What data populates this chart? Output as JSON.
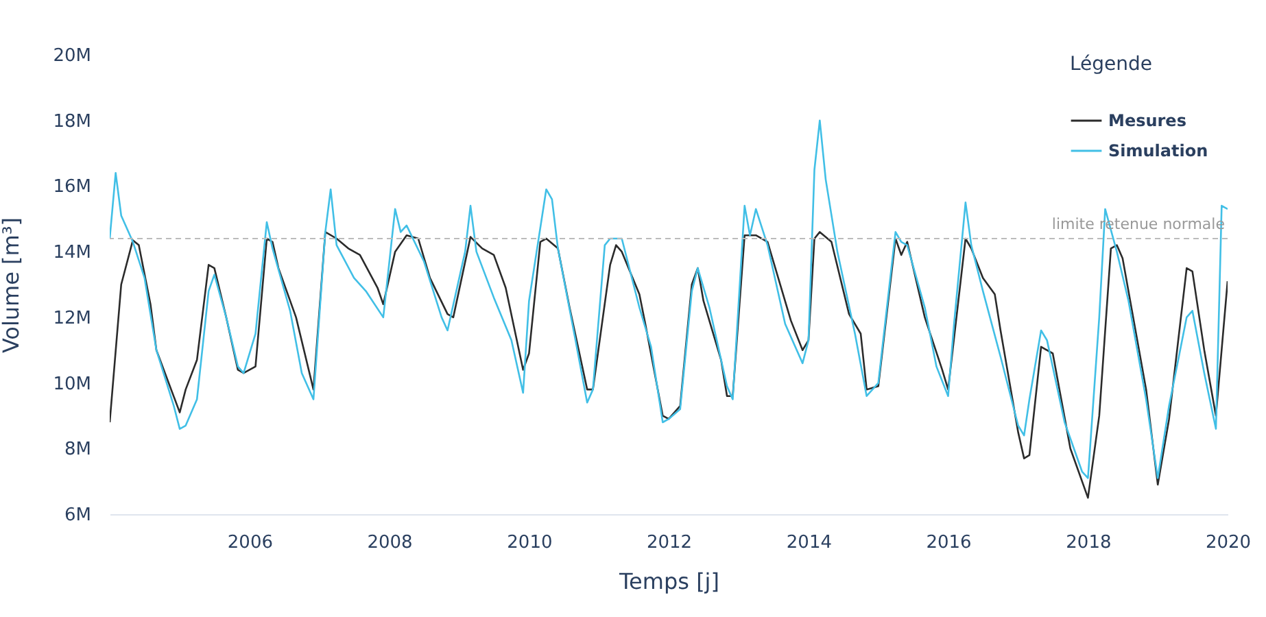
{
  "chart_data": {
    "type": "line",
    "xlabel": "Temps [j]",
    "ylabel": "Volume [m³]",
    "legend_title": "Légende",
    "legend": "top right",
    "xlim": [
      "2004-01",
      "2020-01"
    ],
    "xticks": [
      "2006",
      "2008",
      "2010",
      "2012",
      "2014",
      "2016",
      "2018",
      "2020"
    ],
    "ylim": [
      6000000,
      20000000
    ],
    "yticks": [
      {
        "value": 6000000,
        "label": "6M"
      },
      {
        "value": 8000000,
        "label": "8M"
      },
      {
        "value": 10000000,
        "label": "10M"
      },
      {
        "value": 12000000,
        "label": "12M"
      },
      {
        "value": 14000000,
        "label": "14M"
      },
      {
        "value": 16000000,
        "label": "16M"
      },
      {
        "value": 18000000,
        "label": "18M"
      },
      {
        "value": 20000000,
        "label": "20M"
      }
    ],
    "ref_lines": [
      {
        "axis": "y",
        "value": 14400000,
        "label": "limite retenue normale",
        "color": "#bbbbbb",
        "line_style": "dashed"
      }
    ],
    "series": [
      {
        "name": "Mesures",
        "color": "#2b2b2b",
        "x": [
          "2004-01",
          "2004-03",
          "2004-05",
          "2004-06",
          "2004-08",
          "2004-09",
          "2005-01",
          "2005-02",
          "2005-04",
          "2005-06",
          "2005-07",
          "2005-09",
          "2005-11",
          "2005-12",
          "2006-02",
          "2006-04",
          "2006-05",
          "2006-06",
          "2006-09",
          "2006-12",
          "2007-02",
          "2007-04",
          "2007-06",
          "2007-08",
          "2007-11",
          "2007-12",
          "2008-02",
          "2008-04",
          "2008-06",
          "2008-08",
          "2008-11",
          "2008-12",
          "2009-03",
          "2009-05",
          "2009-07",
          "2009-09",
          "2009-12",
          "2010-01",
          "2010-03",
          "2010-04",
          "2010-06",
          "2010-08",
          "2010-11",
          "2010-12",
          "2011-03",
          "2011-04",
          "2011-05",
          "2011-08",
          "2011-09",
          "2011-12",
          "2012-01",
          "2012-03",
          "2012-05",
          "2012-06",
          "2012-07",
          "2012-10",
          "2012-11",
          "2012-12",
          "2013-02",
          "2013-04",
          "2013-06",
          "2013-10",
          "2013-12",
          "2014-01",
          "2014-02",
          "2014-03",
          "2014-05",
          "2014-08",
          "2014-10",
          "2014-11",
          "2015-01",
          "2015-04",
          "2015-05",
          "2015-06",
          "2015-09",
          "2015-12",
          "2016-01",
          "2016-04",
          "2016-05",
          "2016-07",
          "2016-09",
          "2016-10",
          "2017-01",
          "2017-02",
          "2017-03",
          "2017-05",
          "2017-07",
          "2017-10",
          "2018-01",
          "2018-03",
          "2018-05",
          "2018-06",
          "2018-07",
          "2018-11",
          "2019-01",
          "2019-03",
          "2019-06",
          "2019-07",
          "2019-09",
          "2019-11",
          "2020-01"
        ],
        "values": [
          8800000,
          13000000,
          14350000,
          14200000,
          12400000,
          11000000,
          9100000,
          9800000,
          10700000,
          13600000,
          13500000,
          12000000,
          10400000,
          10300000,
          10500000,
          14400000,
          14300000,
          13500000,
          12000000,
          9800000,
          14600000,
          14400000,
          14100000,
          13900000,
          12900000,
          12400000,
          14000000,
          14500000,
          14400000,
          13200000,
          12100000,
          12000000,
          14450000,
          14100000,
          13900000,
          12900000,
          10400000,
          10900000,
          14300000,
          14400000,
          14100000,
          12300000,
          9800000,
          9800000,
          13600000,
          14200000,
          14000000,
          12700000,
          11800000,
          9000000,
          8900000,
          9300000,
          13000000,
          13500000,
          12500000,
          10700000,
          9600000,
          9600000,
          14500000,
          14500000,
          14300000,
          11900000,
          11000000,
          11300000,
          14400000,
          14600000,
          14300000,
          12100000,
          11500000,
          9800000,
          9900000,
          14400000,
          13900000,
          14300000,
          12000000,
          10400000,
          9800000,
          14400000,
          14100000,
          13200000,
          12700000,
          11600000,
          8500000,
          7700000,
          7800000,
          11100000,
          10900000,
          8000000,
          6500000,
          9000000,
          14100000,
          14200000,
          13800000,
          9800000,
          6900000,
          8900000,
          13500000,
          13400000,
          11000000,
          9000000,
          13100000
        ]
      },
      {
        "name": "Simulation",
        "color": "#41bfe6",
        "x": [
          "2004-01",
          "2004-02",
          "2004-03",
          "2004-05",
          "2004-07",
          "2004-09",
          "2004-12",
          "2005-01",
          "2005-02",
          "2005-04",
          "2005-06",
          "2005-07",
          "2005-09",
          "2005-11",
          "2005-12",
          "2006-02",
          "2006-04",
          "2006-05",
          "2006-08",
          "2006-10",
          "2006-12",
          "2007-02",
          "2007-03",
          "2007-04",
          "2007-07",
          "2007-09",
          "2007-12",
          "2008-02",
          "2008-03",
          "2008-04",
          "2008-07",
          "2008-10",
          "2008-11",
          "2009-02",
          "2009-03",
          "2009-04",
          "2009-07",
          "2009-10",
          "2009-12",
          "2010-01",
          "2010-04",
          "2010-05",
          "2010-06",
          "2010-09",
          "2010-11",
          "2010-12",
          "2011-02",
          "2011-03",
          "2011-05",
          "2011-08",
          "2011-10",
          "2011-12",
          "2012-01",
          "2012-03",
          "2012-05",
          "2012-06",
          "2012-08",
          "2012-11",
          "2012-12",
          "2013-02",
          "2013-03",
          "2013-04",
          "2013-06",
          "2013-09",
          "2013-12",
          "2014-01",
          "2014-02",
          "2014-03",
          "2014-04",
          "2014-06",
          "2014-09",
          "2014-11",
          "2015-01",
          "2015-04",
          "2015-05",
          "2015-06",
          "2015-09",
          "2015-11",
          "2016-01",
          "2016-02",
          "2016-04",
          "2016-05",
          "2016-07",
          "2016-10",
          "2017-01",
          "2017-02",
          "2017-03",
          "2017-05",
          "2017-06",
          "2017-09",
          "2017-12",
          "2018-01",
          "2018-03",
          "2018-04",
          "2018-06",
          "2018-08",
          "2018-11",
          "2019-01",
          "2019-03",
          "2019-06",
          "2019-07",
          "2019-09",
          "2019-11",
          "2019-12",
          "2020-01"
        ],
        "values": [
          14400000,
          16400000,
          15100000,
          14300000,
          13200000,
          11000000,
          9300000,
          8600000,
          8700000,
          9500000,
          12800000,
          13300000,
          12000000,
          10500000,
          10300000,
          11500000,
          14900000,
          14100000,
          12200000,
          10300000,
          9500000,
          14600000,
          15900000,
          14200000,
          13200000,
          12800000,
          12000000,
          15300000,
          14600000,
          14800000,
          13700000,
          12000000,
          11600000,
          14000000,
          15400000,
          14000000,
          12600000,
          11300000,
          9700000,
          12500000,
          15900000,
          15600000,
          14100000,
          11300000,
          9400000,
          9800000,
          14200000,
          14400000,
          14400000,
          12300000,
          11100000,
          8800000,
          8900000,
          9200000,
          12800000,
          13500000,
          12300000,
          9900000,
          9500000,
          15400000,
          14500000,
          15300000,
          14200000,
          11800000,
          10600000,
          11300000,
          16500000,
          18000000,
          16200000,
          14000000,
          11500000,
          9600000,
          10000000,
          14600000,
          14300000,
          14200000,
          12300000,
          10500000,
          9600000,
          11800000,
          15500000,
          14200000,
          12800000,
          10800000,
          8700000,
          8400000,
          9500000,
          11600000,
          11300000,
          8800000,
          7300000,
          7100000,
          12000000,
          15300000,
          14000000,
          12500000,
          9500000,
          7100000,
          9300000,
          12000000,
          12200000,
          10300000,
          8600000,
          15400000,
          15300000
        ]
      }
    ]
  }
}
